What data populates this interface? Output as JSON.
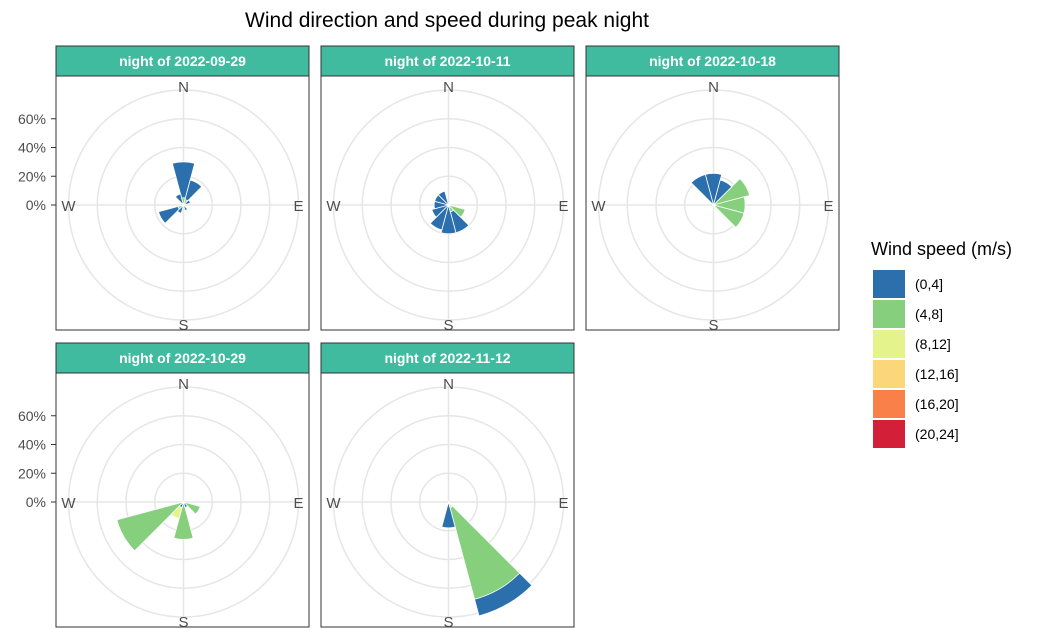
{
  "chart_data": {
    "type": "polar-bar",
    "title": "Wind direction and speed during peak night",
    "radial_axis": {
      "ticks": [
        "0%",
        "20%",
        "40%",
        "60%"
      ],
      "max": 80
    },
    "compass_labels": {
      "N": "N",
      "E": "E",
      "S": "S",
      "W": "W"
    },
    "legend": {
      "title": "Wind speed (m/s)",
      "placement": "right",
      "items": [
        {
          "label": "(0,4]",
          "color": "#2b6fad"
        },
        {
          "label": "(4,8]",
          "color": "#86cf7c"
        },
        {
          "label": "(8,12]",
          "color": "#e4f38c"
        },
        {
          "label": "(12,16]",
          "color": "#fcd77a"
        },
        {
          "label": "(16,20]",
          "color": "#f98049"
        },
        {
          "label": "(20,24]",
          "color": "#d32038"
        }
      ]
    },
    "panels": [
      {
        "label": "night of 2022-09-29",
        "bars": [
          {
            "dir": 0,
            "speed": "(0,4]",
            "value": 30
          },
          {
            "dir": 30,
            "speed": "(0,4]",
            "value": 18
          },
          {
            "dir": 60,
            "speed": "(0,4]",
            "value": 5
          },
          {
            "dir": 150,
            "speed": "(0,4]",
            "value": 4
          },
          {
            "dir": 210,
            "speed": "(0,4]",
            "value": 6
          },
          {
            "dir": 240,
            "speed": "(0,4]",
            "value": 18
          },
          {
            "dir": 330,
            "speed": "(0,4]",
            "value": 8
          },
          {
            "dir": 0,
            "speed": "(4,8]",
            "value": 5
          },
          {
            "dir": 30,
            "speed": "(4,8]",
            "value": 4
          },
          {
            "dir": 240,
            "speed": "(4,8]",
            "value": 4
          }
        ]
      },
      {
        "label": "night of 2022-10-11",
        "bars": [
          {
            "dir": 150,
            "speed": "(0,4]",
            "value": 20
          },
          {
            "dir": 180,
            "speed": "(0,4]",
            "value": 20
          },
          {
            "dir": 210,
            "speed": "(0,4]",
            "value": 18
          },
          {
            "dir": 240,
            "speed": "(0,4]",
            "value": 12
          },
          {
            "dir": 270,
            "speed": "(0,4]",
            "value": 10
          },
          {
            "dir": 300,
            "speed": "(0,4]",
            "value": 10
          },
          {
            "dir": 330,
            "speed": "(0,4]",
            "value": 10
          },
          {
            "dir": 120,
            "speed": "(4,8]",
            "value": 12
          },
          {
            "dir": 150,
            "speed": "(4,8]",
            "value": 5
          }
        ]
      },
      {
        "label": "night of 2022-10-18",
        "bars": [
          {
            "dir": 0,
            "speed": "(0,4]",
            "value": 22
          },
          {
            "dir": 30,
            "speed": "(0,4]",
            "value": 18
          },
          {
            "dir": 330,
            "speed": "(0,4]",
            "value": 22
          },
          {
            "dir": 60,
            "speed": "(4,8]",
            "value": 26
          },
          {
            "dir": 90,
            "speed": "(4,8]",
            "value": 22
          },
          {
            "dir": 120,
            "speed": "(4,8]",
            "value": 22
          }
        ]
      },
      {
        "label": "night of 2022-10-29",
        "bars": [
          {
            "dir": 150,
            "speed": "(0,4]",
            "value": 4
          },
          {
            "dir": 210,
            "speed": "(0,4]",
            "value": 4
          },
          {
            "dir": 120,
            "speed": "(4,8]",
            "value": 12
          },
          {
            "dir": 180,
            "speed": "(4,8]",
            "value": 26
          },
          {
            "dir": 240,
            "speed": "(4,8]",
            "value": 48
          },
          {
            "dir": 210,
            "speed": "(8,12]",
            "value": 12
          }
        ]
      },
      {
        "label": "night of 2022-11-12",
        "bars": [
          {
            "dir": 150,
            "speed": "(0,4]",
            "value": 82
          },
          {
            "dir": 180,
            "speed": "(0,4]",
            "value": 18
          },
          {
            "dir": 150,
            "speed": "(4,8]",
            "value": 70
          },
          {
            "dir": 150,
            "speed": "(8,12]",
            "value": 4
          }
        ]
      }
    ]
  }
}
